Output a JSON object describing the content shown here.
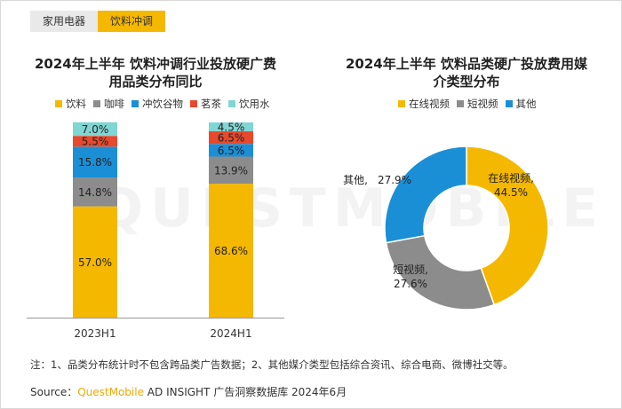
{
  "tabs": [
    {
      "label": "家用电器",
      "active": false
    },
    {
      "label": "饮料冲调",
      "active": true
    }
  ],
  "watermark": "QUESTMOBILE",
  "colors": {
    "yellow": "#f5b800",
    "gray": "#8c8c8c",
    "blue": "#1b8fd6",
    "red": "#e8492c",
    "teal": "#7fd6d3"
  },
  "chart_data": [
    {
      "type": "bar",
      "stacked": true,
      "title_line1": "2024年上半年 饮料冲调行业投放硬广费",
      "title_line2": "用品类分布同比",
      "categories": [
        "2023H1",
        "2024H1"
      ],
      "series": [
        {
          "name": "饮料",
          "color": "#f5b800",
          "values": [
            57.0,
            68.6
          ]
        },
        {
          "name": "咖啡",
          "color": "#8c8c8c",
          "values": [
            14.8,
            13.9
          ]
        },
        {
          "name": "冲饮谷物",
          "color": "#1b8fd6",
          "values": [
            15.8,
            6.5
          ]
        },
        {
          "name": "茗茶",
          "color": "#e8492c",
          "values": [
            5.5,
            6.5
          ]
        },
        {
          "name": "饮用水",
          "color": "#7fd6d3",
          "values": [
            7.0,
            4.5
          ]
        }
      ],
      "ylim": [
        0,
        100
      ],
      "legend_position": "top"
    },
    {
      "type": "pie",
      "donut": true,
      "title_line1": "2024年上半年 饮料品类硬广投放费用媒",
      "title_line2": "介类型分布",
      "series": [
        {
          "name": "在线视频",
          "color": "#f5b800",
          "value": 44.5
        },
        {
          "name": "短视频",
          "color": "#8c8c8c",
          "value": 27.6
        },
        {
          "name": "其他",
          "color": "#1b8fd6",
          "value": 27.9
        }
      ],
      "slice_labels": [
        "在线视频,",
        "短视频,",
        "其他,"
      ],
      "value_labels": [
        "44.5%",
        "27.6%",
        "27.9%"
      ],
      "legend_position": "top"
    }
  ],
  "note": "注：1、品类分布统计时不包含跨品类广告数据；2、其他媒介类型包括综合资讯、综合电商、微博社交等。",
  "source": {
    "prefix": "Source：",
    "brand": "QuestMobile",
    "suffix": " AD INSIGHT 广告洞察数据库 2024年6月"
  }
}
